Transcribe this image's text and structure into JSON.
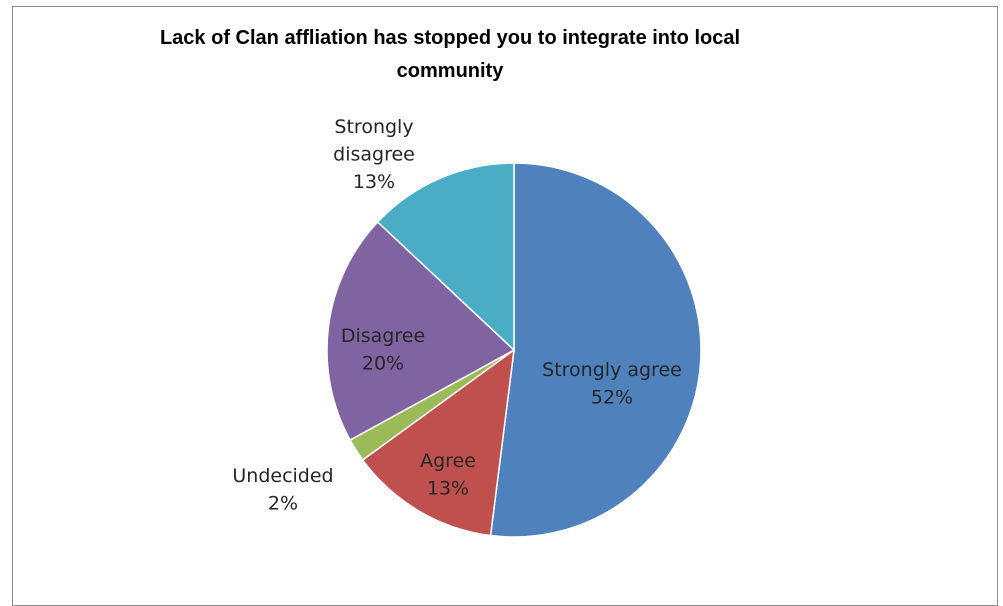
{
  "chart_data": {
    "type": "pie",
    "title_lines": [
      "Lack of Clan affliation has stopped you to integrate into local",
      "community"
    ],
    "slices": [
      {
        "label": "Strongly agree",
        "value": 52,
        "value_label": "52%",
        "color": "#4f81bd"
      },
      {
        "label": "Agree",
        "value": 13,
        "value_label": "13%",
        "color": "#c0504d"
      },
      {
        "label": "Undecided",
        "value": 2,
        "value_label": "2%",
        "color": "#9bbb59"
      },
      {
        "label": "Disagree",
        "value": 20,
        "value_label": "20%",
        "color": "#8064a2"
      },
      {
        "label": "Strongly disagree",
        "value": 13,
        "value_label": "13%",
        "color": "#4bacc6"
      }
    ],
    "legend": "none"
  }
}
